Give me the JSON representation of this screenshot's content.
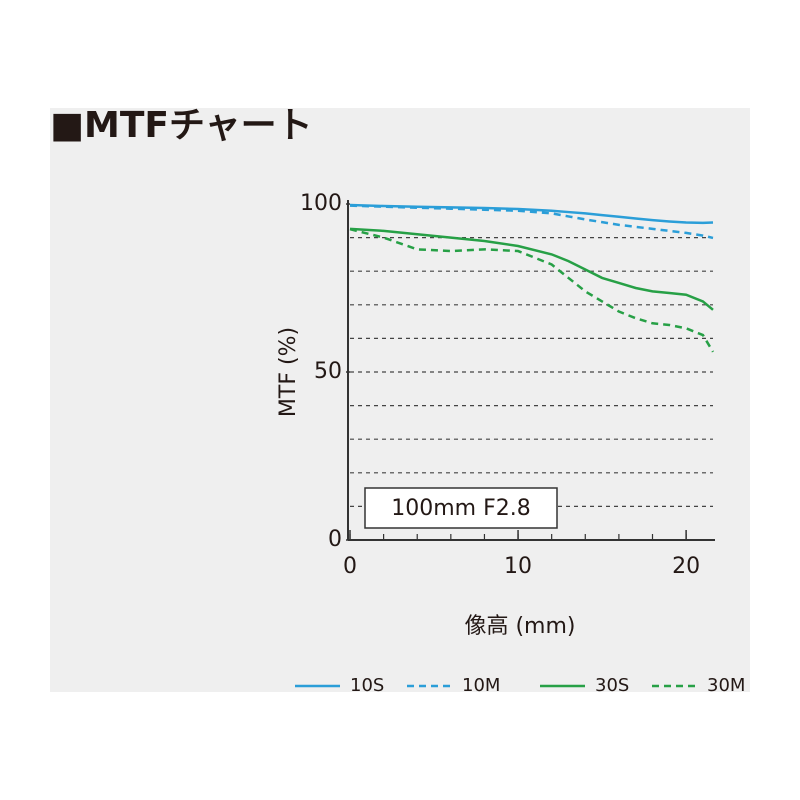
{
  "chart_data": {
    "type": "line",
    "title": "■MTFチャート",
    "x_label": "像高 (mm)",
    "y_label": "MTF (%)",
    "annotation": "100mm F2.8",
    "x": [
      0,
      2,
      4,
      6,
      8,
      10,
      12,
      13,
      14,
      15,
      16,
      17,
      18,
      19,
      20,
      21,
      21.6
    ],
    "series": [
      {
        "name": "10S",
        "color": "#2b9ed8",
        "dash": false,
        "values": [
          99.7,
          99.4,
          99.2,
          99,
          98.8,
          98.5,
          98,
          97.6,
          97.2,
          96.7,
          96.2,
          95.7,
          95.2,
          94.8,
          94.5,
          94.4,
          94.5
        ]
      },
      {
        "name": "10M",
        "color": "#2b9ed8",
        "dash": true,
        "values": [
          99.5,
          99.2,
          98.9,
          98.6,
          98.3,
          98,
          97.2,
          96.3,
          95.4,
          94.6,
          93.8,
          93.2,
          92.6,
          92,
          91.4,
          90.6,
          89.9
        ]
      },
      {
        "name": "30S",
        "color": "#27a046",
        "dash": false,
        "values": [
          92.6,
          92,
          91,
          90,
          89,
          87.5,
          85,
          83,
          80.5,
          78,
          76.5,
          75,
          74,
          73.5,
          73,
          71,
          68.5
        ]
      },
      {
        "name": "30M",
        "color": "#27a046",
        "dash": true,
        "values": [
          92.5,
          90,
          86.5,
          86,
          86.5,
          86,
          82,
          78,
          74,
          71,
          68,
          66,
          64.5,
          64,
          63,
          61,
          56
        ]
      }
    ],
    "xlim": [
      0,
      21.6
    ],
    "ylim": [
      0,
      100
    ],
    "xticks": [
      0,
      10,
      20
    ],
    "yticks": [
      0,
      50,
      100
    ],
    "grid_lines": [
      10,
      20,
      30,
      40,
      50,
      60,
      70,
      80,
      90
    ]
  }
}
